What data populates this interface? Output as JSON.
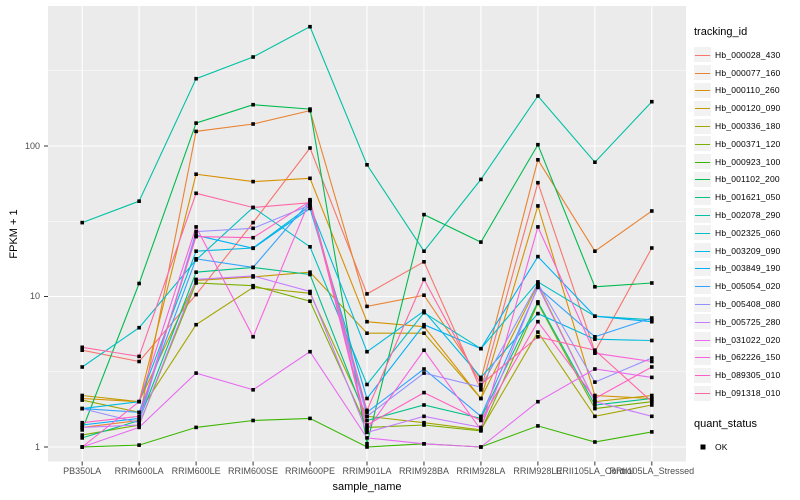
{
  "figure": {
    "xlabel": "sample_name",
    "ylabel": "FPKM + 1",
    "legend_title": "tracking_id",
    "legend2_title": "quant_status",
    "legend2_items": [
      "OK"
    ],
    "colors": {
      "panel_bg": "#EBEBEB",
      "grid": "#FFFFFF",
      "marker": "#000000",
      "axis_text": "#4D4D4D",
      "tick_mark": "#333333"
    }
  },
  "chart_data": {
    "type": "line",
    "title": "",
    "xlabel": "sample_name",
    "ylabel": "FPKM + 1",
    "y_scale": "log10",
    "y_ticks": [
      1,
      10,
      100
    ],
    "y_minor_ticks": [
      3.1623,
      31.623,
      316.23
    ],
    "ylim": [
      0.79,
      850
    ],
    "grid": true,
    "legend_position": "right",
    "marker": {
      "shape": "square",
      "color": "#000000",
      "label": "OK"
    },
    "categories": [
      "PB350LA",
      "RRIM600LA",
      "RRIM600LE",
      "RRIM600SE",
      "RRIM600PE",
      "RRIM901LA",
      "RRIM928BA",
      "RRIM928LA",
      "RRIM928LE",
      "RRII105LA_Control",
      "RRII105LA_Stressed"
    ],
    "series": [
      {
        "name": "Hb_000028_430",
        "color": "#F8766D",
        "values": [
          4.4,
          3.7,
          10.3,
          31,
          97,
          10.4,
          17,
          2.4,
          57,
          4.3,
          21
        ]
      },
      {
        "name": "Hb_000077_160",
        "color": "#EA8331",
        "values": [
          1.35,
          1.5,
          125,
          140,
          172,
          8.6,
          10.2,
          2.8,
          81,
          20,
          37
        ]
      },
      {
        "name": "Hb_000110_260",
        "color": "#D89000",
        "values": [
          2.1,
          2.0,
          65,
          58,
          61,
          6.8,
          6.3,
          2.1,
          40,
          2.2,
          2.1
        ]
      },
      {
        "name": "Hb_000120_090",
        "color": "#C09B00",
        "values": [
          2.2,
          2.0,
          12.8,
          13.5,
          14.5,
          5.7,
          5.7,
          2.1,
          12,
          2.0,
          2.2
        ]
      },
      {
        "name": "Hb_000336_180",
        "color": "#A3A500",
        "values": [
          2.05,
          1.7,
          6.5,
          11.5,
          10.5,
          1.6,
          1.45,
          1.3,
          5.8,
          1.6,
          1.9
        ]
      },
      {
        "name": "Hb_000371_120",
        "color": "#7CAE00",
        "values": [
          1.2,
          1.4,
          12.3,
          11.8,
          9.3,
          1.35,
          1.4,
          1.28,
          9.0,
          1.8,
          2.0
        ]
      },
      {
        "name": "Hb_000923_100",
        "color": "#39B600",
        "values": [
          1.0,
          1.03,
          1.35,
          1.5,
          1.55,
          1.0,
          1.05,
          1.0,
          1.38,
          1.08,
          1.26
        ]
      },
      {
        "name": "Hb_001102_200",
        "color": "#00BB4E",
        "values": [
          1.3,
          12.2,
          142,
          188,
          176,
          1.05,
          35,
          23,
          102,
          11.6,
          12.3
        ]
      },
      {
        "name": "Hb_001621_050",
        "color": "#00C087",
        "values": [
          1.15,
          1.5,
          14.5,
          15.6,
          14.0,
          1.5,
          1.9,
          1.55,
          9.2,
          1.9,
          2.1
        ]
      },
      {
        "name": "Hb_002078_290",
        "color": "#00C1A3",
        "values": [
          31,
          43,
          280,
          390,
          620,
          75,
          20,
          60,
          215,
          78,
          197
        ]
      },
      {
        "name": "Hb_002325_060",
        "color": "#00BFC4",
        "values": [
          3.4,
          6.2,
          17.5,
          39,
          21.4,
          2.6,
          7.8,
          4.5,
          12.5,
          7.4,
          7.0
        ]
      },
      {
        "name": "Hb_003209_090",
        "color": "#00BAE0",
        "values": [
          1.8,
          2.0,
          20,
          21,
          40,
          4.3,
          8.0,
          2.9,
          7.7,
          5.2,
          5.1
        ]
      },
      {
        "name": "Hb_003849_190",
        "color": "#00B0F6",
        "values": [
          1.4,
          1.55,
          25.5,
          20.9,
          38.5,
          2.1,
          6.5,
          4.5,
          18.4,
          7.4,
          6.8
        ]
      },
      {
        "name": "Hb_005054_020",
        "color": "#35A2FF",
        "values": [
          1.8,
          1.7,
          17.8,
          15.6,
          43,
          1.7,
          3.3,
          1.6,
          11.5,
          5.4,
          7.2
        ]
      },
      {
        "name": "Hb_005408_080",
        "color": "#9590FF",
        "values": [
          1.8,
          1.45,
          27,
          28.4,
          40.5,
          1.6,
          3.1,
          2.5,
          12.2,
          2.7,
          3.9
        ]
      },
      {
        "name": "Hb_005725_280",
        "color": "#C77CFF",
        "values": [
          1.35,
          1.4,
          13,
          13.7,
          10.8,
          1.25,
          1.6,
          1.35,
          11.7,
          2.0,
          1.6
        ]
      },
      {
        "name": "Hb_031022_020",
        "color": "#E76BF3",
        "values": [
          1.0,
          1.35,
          3.1,
          2.4,
          4.3,
          1.15,
          1.05,
          1.0,
          2.0,
          3.3,
          2.9
        ]
      },
      {
        "name": "Hb_062226_150",
        "color": "#FA62DB",
        "values": [
          1.0,
          2.0,
          29,
          5.4,
          44,
          1.3,
          4.4,
          1.3,
          29,
          4.2,
          3.7
        ]
      },
      {
        "name": "Hb_089305_010",
        "color": "#FF61C3",
        "values": [
          1.45,
          1.6,
          25,
          24.6,
          43,
          1.4,
          2.3,
          1.5,
          6.8,
          2.1,
          3.4
        ]
      },
      {
        "name": "Hb_091318_010",
        "color": "#FF67A4",
        "values": [
          4.6,
          4.0,
          48.5,
          39,
          42,
          1.75,
          13,
          2.6,
          5.4,
          4.4,
          2.0
        ]
      }
    ]
  }
}
